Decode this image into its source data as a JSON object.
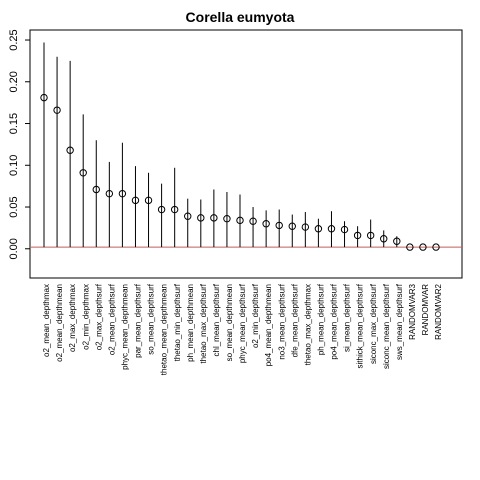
{
  "chart_data": {
    "type": "scatter",
    "title": "Corella eumyota",
    "xlabel": "",
    "ylabel": "",
    "ylim": [
      -0.035,
      0.262
    ],
    "yticks": [
      0.0,
      0.05,
      0.1,
      0.15,
      0.2,
      0.25
    ],
    "ytick_labels": [
      "0.00",
      "0.05",
      "0.10",
      "0.15",
      "0.20",
      "0.25"
    ],
    "baseline": 0.002,
    "colors": {
      "points": "#000000",
      "baseline": "#d9534f",
      "frame": "#000000"
    },
    "grid": false,
    "legend": "none",
    "categories": [
      "o2_mean_depthmax",
      "o2_mean_depthmean",
      "o2_max_depthmax",
      "o2_min_depthmax",
      "o2_max_depthsurf",
      "o2_mean_depthsurf",
      "phyc_mean_depthmean",
      "par_mean_depthsurf",
      "so_mean_depthsurf",
      "thetao_mean_depthmean",
      "thetao_min_depthsurf",
      "ph_mean_depthmean",
      "thetao_max_depthsurf",
      "chl_mean_depthsurf",
      "so_mean_depthmean",
      "phyc_mean_depthsurf",
      "o2_min_depthsurf",
      "po4_mean_depthmean",
      "no3_mean_depthsurf",
      "dfe_mean_depthsurf",
      "thetao_max_depthmax",
      "ph_mean_depthsurf",
      "po4_mean_depthsurf",
      "si_mean_depthsurf",
      "sithick_mean_depthsurf",
      "siconc_max_depthsurf",
      "siconc_mean_depthsurf",
      "sws_mean_depthsurf",
      "RANDOMVAR3",
      "RANDOMVAR",
      "RANDOMVAR2"
    ],
    "points": [
      0.181,
      0.166,
      0.118,
      0.091,
      0.071,
      0.066,
      0.066,
      0.058,
      0.058,
      0.047,
      0.047,
      0.039,
      0.037,
      0.037,
      0.036,
      0.034,
      0.033,
      0.03,
      0.028,
      0.027,
      0.026,
      0.024,
      0.024,
      0.023,
      0.016,
      0.016,
      0.012,
      0.009,
      0.002,
      0.002,
      0.002
    ],
    "upper": [
      0.247,
      0.23,
      0.225,
      0.161,
      0.13,
      0.104,
      0.127,
      0.099,
      0.091,
      0.078,
      0.097,
      0.06,
      0.059,
      0.071,
      0.068,
      0.065,
      0.05,
      0.046,
      0.047,
      0.041,
      0.044,
      0.036,
      0.045,
      0.033,
      0.027,
      0.035,
      0.022,
      0.015,
      0.002,
      0.002,
      0.002
    ],
    "lower": [
      0.002,
      0.002,
      0.002,
      0.002,
      0.002,
      0.002,
      0.002,
      0.002,
      0.002,
      0.002,
      0.002,
      0.002,
      0.002,
      0.002,
      0.002,
      0.002,
      0.002,
      0.002,
      0.002,
      0.002,
      0.002,
      0.002,
      0.002,
      0.002,
      0.002,
      0.002,
      0.002,
      0.002,
      0.002,
      0.002,
      0.002
    ]
  }
}
